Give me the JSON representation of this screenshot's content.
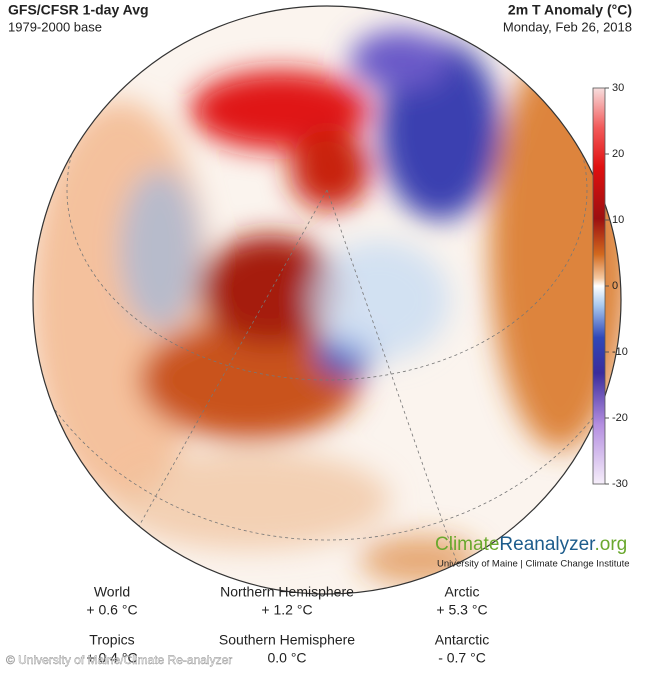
{
  "header": {
    "title": "GFS/CFSR 1-day Avg",
    "subtitle": "1979-2000 base",
    "variable": "2m T Anomaly (°C)",
    "date": "Monday, Feb 26, 2018"
  },
  "colorbar": {
    "ticks": [
      30,
      20,
      10,
      0,
      -10,
      -20,
      -30
    ],
    "lim": [
      -30,
      30
    ]
  },
  "logo": {
    "climate": "Climate",
    "reanalyzer": "Reanalyzer",
    "org": ".org",
    "affiliation": "University of Maine | Climate Change Institute"
  },
  "stats": [
    {
      "region": "World",
      "value": "+ 0.6 °C"
    },
    {
      "region": "Northern Hemisphere",
      "value": "+ 1.2 °C"
    },
    {
      "region": "Arctic",
      "value": "+ 5.3 °C"
    },
    {
      "region": "Tropics",
      "value": "+ 0.4 °C"
    },
    {
      "region": "Southern Hemisphere",
      "value": "0.0 °C"
    },
    {
      "region": "Antarctic",
      "value": "- 0.7 °C"
    }
  ],
  "watermark": "© University of Maine/Climate Re-analyzer"
}
